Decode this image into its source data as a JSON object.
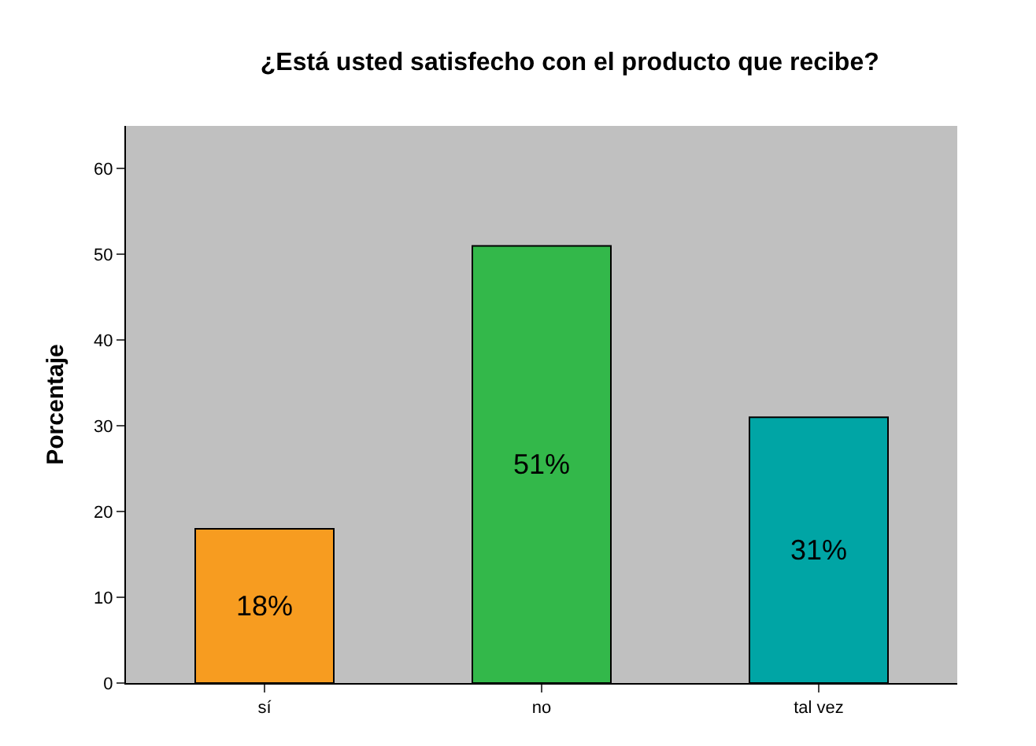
{
  "chart_data": {
    "type": "bar",
    "title": "¿Está usted satisfecho con el producto que recibe?",
    "ylabel": "Porcentaje",
    "categories": [
      "sí",
      "no",
      "tal vez"
    ],
    "values": [
      18,
      51,
      31
    ],
    "colors": [
      "#f79c20",
      "#33b84a",
      "#00a5a5"
    ],
    "value_labels": [
      "18%",
      "51%",
      "31%"
    ],
    "ylim": [
      0,
      65
    ],
    "yticks": [
      0,
      10,
      20,
      30,
      40,
      50,
      60
    ],
    "grid": false
  }
}
